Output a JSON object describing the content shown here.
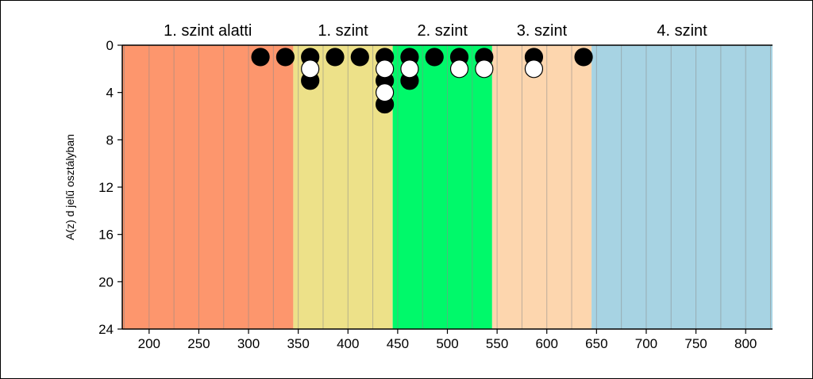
{
  "chart_data": {
    "type": "scatter",
    "ylabel": "A(z) d jelű osztályban",
    "xlim": [
      173,
      827
    ],
    "ylim": [
      0,
      24
    ],
    "y_inverted": true,
    "x_ticks": [
      200,
      250,
      300,
      350,
      400,
      450,
      500,
      550,
      600,
      650,
      700,
      750,
      800
    ],
    "y_ticks": [
      0,
      4,
      8,
      12,
      16,
      20,
      24
    ],
    "grid": "vertical",
    "bands": [
      {
        "label": "1. szint alatti",
        "from": 173,
        "to": 345,
        "color": "#fd966d"
      },
      {
        "label": "1. szint",
        "from": 345,
        "to": 445,
        "color": "#ede189"
      },
      {
        "label": "2. szint",
        "from": 445,
        "to": 545,
        "color": "#00f96a"
      },
      {
        "label": "3. szint",
        "from": 545,
        "to": 645,
        "color": "#fdd6ae"
      },
      {
        "label": "4. szint",
        "from": 645,
        "to": 827,
        "color": "#a7d3e3"
      }
    ],
    "series": [
      {
        "marker": "black-circle",
        "color": "#000000",
        "points": [
          [
            312,
            1
          ],
          [
            337,
            1
          ],
          [
            362,
            1
          ],
          [
            362,
            3
          ],
          [
            387,
            1
          ],
          [
            412,
            1
          ],
          [
            437,
            1
          ],
          [
            437,
            3
          ],
          [
            437,
            5
          ],
          [
            462,
            1
          ],
          [
            462,
            3
          ],
          [
            487,
            1
          ],
          [
            512,
            1
          ],
          [
            537,
            1
          ],
          [
            587,
            1
          ],
          [
            637,
            1
          ]
        ]
      },
      {
        "marker": "white-circle",
        "color": "#ffffff",
        "points": [
          [
            362,
            2
          ],
          [
            437,
            2
          ],
          [
            437,
            4
          ],
          [
            462,
            2
          ],
          [
            512,
            2
          ],
          [
            537,
            2
          ],
          [
            587,
            2
          ]
        ]
      }
    ]
  }
}
